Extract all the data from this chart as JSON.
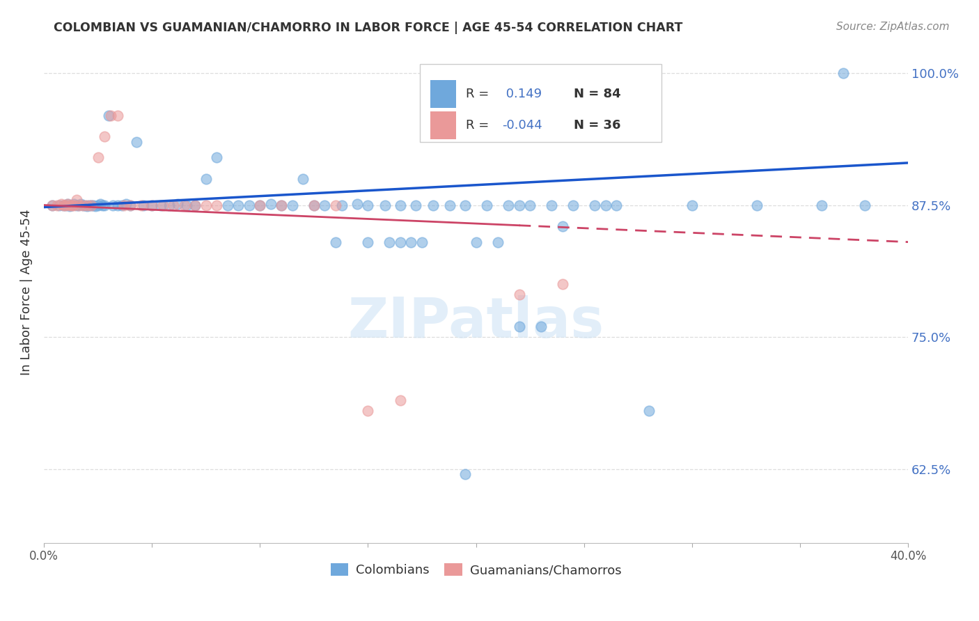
{
  "title": "COLOMBIAN VS GUAMANIAN/CHAMORRO IN LABOR FORCE | AGE 45-54 CORRELATION CHART",
  "source": "Source: ZipAtlas.com",
  "ylabel": "In Labor Force | Age 45-54",
  "xlim": [
    0.0,
    0.4
  ],
  "ylim": [
    0.555,
    1.03
  ],
  "yticks": [
    0.625,
    0.75,
    0.875,
    1.0
  ],
  "ytick_labels": [
    "62.5%",
    "75.0%",
    "87.5%",
    "100.0%"
  ],
  "xticks": [
    0.0,
    0.05,
    0.1,
    0.15,
    0.2,
    0.25,
    0.3,
    0.35,
    0.4
  ],
  "xtick_labels": [
    "0.0%",
    "",
    "",
    "",
    "",
    "",
    "",
    "",
    "40.0%"
  ],
  "legend_labels": [
    "Colombians",
    "Guamanians/Chamorros"
  ],
  "blue_color": "#6fa8dc",
  "pink_color": "#ea9999",
  "trend_blue": "#1a56cc",
  "trend_pink": "#cc4466",
  "R_blue": 0.149,
  "N_blue": 84,
  "R_pink": -0.044,
  "N_pink": 36,
  "background_color": "#ffffff",
  "grid_color": "#dddddd",
  "blue_x": [
    0.004,
    0.007,
    0.009,
    0.01,
    0.011,
    0.012,
    0.013,
    0.014,
    0.015,
    0.016,
    0.017,
    0.018,
    0.019,
    0.02,
    0.021,
    0.022,
    0.023,
    0.024,
    0.025,
    0.026,
    0.027,
    0.028,
    0.03,
    0.032,
    0.034,
    0.036,
    0.038,
    0.04,
    0.043,
    0.046,
    0.05,
    0.054,
    0.058,
    0.062,
    0.066,
    0.07,
    0.075,
    0.08,
    0.085,
    0.09,
    0.095,
    0.1,
    0.105,
    0.11,
    0.115,
    0.12,
    0.125,
    0.13,
    0.138,
    0.145,
    0.15,
    0.158,
    0.165,
    0.172,
    0.18,
    0.188,
    0.195,
    0.205,
    0.215,
    0.225,
    0.235,
    0.245,
    0.255,
    0.265,
    0.22,
    0.24,
    0.26,
    0.28,
    0.3,
    0.33,
    0.36,
    0.37,
    0.135,
    0.15,
    0.16,
    0.17,
    0.2,
    0.21,
    0.175,
    0.165,
    0.22,
    0.23,
    0.38,
    0.195
  ],
  "blue_y": [
    0.875,
    0.875,
    0.875,
    0.875,
    0.876,
    0.874,
    0.875,
    0.876,
    0.875,
    0.875,
    0.876,
    0.875,
    0.875,
    0.874,
    0.875,
    0.875,
    0.875,
    0.874,
    0.875,
    0.876,
    0.875,
    0.875,
    0.96,
    0.875,
    0.875,
    0.875,
    0.876,
    0.875,
    0.935,
    0.875,
    0.875,
    0.875,
    0.875,
    0.876,
    0.875,
    0.875,
    0.9,
    0.92,
    0.875,
    0.875,
    0.875,
    0.875,
    0.876,
    0.875,
    0.875,
    0.9,
    0.875,
    0.875,
    0.875,
    0.876,
    0.875,
    0.875,
    0.875,
    0.875,
    0.875,
    0.875,
    0.875,
    0.875,
    0.875,
    0.875,
    0.875,
    0.875,
    0.875,
    0.875,
    0.875,
    0.855,
    0.875,
    0.68,
    0.875,
    0.875,
    0.875,
    1.0,
    0.84,
    0.84,
    0.84,
    0.84,
    0.84,
    0.84,
    0.84,
    0.84,
    0.76,
    0.76,
    0.875,
    0.62
  ],
  "pink_x": [
    0.004,
    0.006,
    0.008,
    0.009,
    0.01,
    0.011,
    0.012,
    0.013,
    0.014,
    0.015,
    0.016,
    0.018,
    0.02,
    0.022,
    0.025,
    0.028,
    0.031,
    0.034,
    0.037,
    0.04,
    0.045,
    0.05,
    0.055,
    0.06,
    0.065,
    0.07,
    0.075,
    0.08,
    0.1,
    0.11,
    0.125,
    0.135,
    0.15,
    0.165,
    0.22,
    0.24
  ],
  "pink_y": [
    0.875,
    0.875,
    0.876,
    0.875,
    0.875,
    0.876,
    0.875,
    0.875,
    0.875,
    0.88,
    0.875,
    0.875,
    0.875,
    0.875,
    0.92,
    0.94,
    0.96,
    0.96,
    0.875,
    0.875,
    0.875,
    0.875,
    0.875,
    0.875,
    0.875,
    0.875,
    0.875,
    0.875,
    0.875,
    0.875,
    0.875,
    0.875,
    0.68,
    0.69,
    0.79,
    0.8
  ]
}
